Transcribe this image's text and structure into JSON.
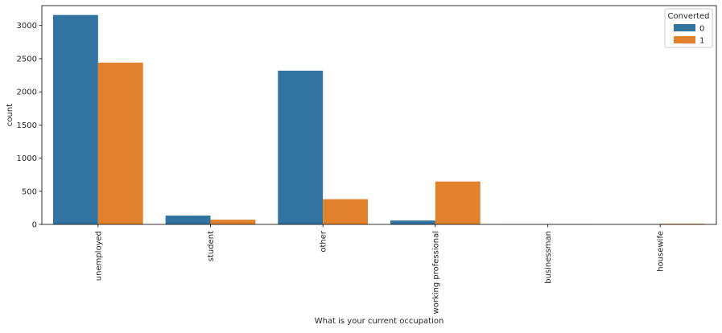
{
  "chart_data": {
    "type": "bar",
    "xlabel": "What is your current occupation",
    "ylabel": "count",
    "categories": [
      "unemployed",
      "student",
      "other",
      "working professional",
      "businessman",
      "housewife"
    ],
    "series": [
      {
        "name": "0",
        "color": "#3274a1",
        "values": [
          3159,
          133,
          2319,
          59,
          3,
          0
        ]
      },
      {
        "name": "1",
        "color": "#e1812c",
        "values": [
          2441,
          71,
          381,
          647,
          5,
          10
        ]
      }
    ],
    "ylim": [
      0,
      3300
    ],
    "yticks": [
      "0",
      "500",
      "1000",
      "1500",
      "2000",
      "2500",
      "3000"
    ],
    "legend": {
      "title": "Converted",
      "placement": "top-right"
    },
    "grid": false
  }
}
